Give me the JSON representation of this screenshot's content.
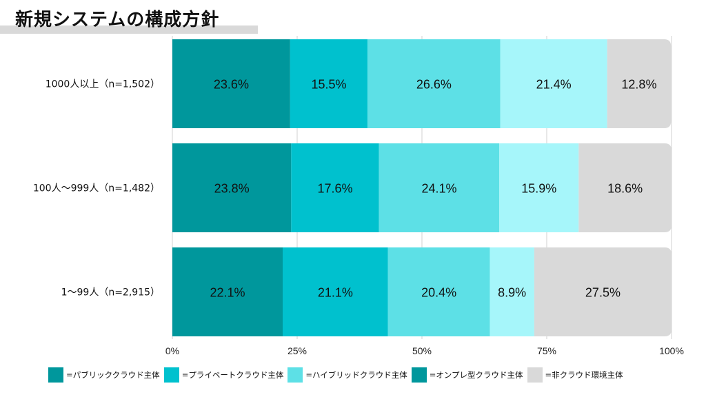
{
  "title": "新規システムの構成方針",
  "chart_data": {
    "type": "bar",
    "orientation": "horizontal",
    "stacked": true,
    "percent": true,
    "categories": [
      "1000人以上（n=1,502）",
      "100人〜999人（n=1,482）",
      "1〜99人（n=2,915）"
    ],
    "series": [
      {
        "name": "=パブリッククラウド主体",
        "color": "#00979c",
        "values": [
          23.6,
          23.8,
          22.1
        ]
      },
      {
        "name": "=プライベートクラウド主体",
        "color": "#00c1ce",
        "values": [
          15.5,
          17.6,
          21.1
        ]
      },
      {
        "name": "=ハイブリッドクラウド主体",
        "color": "#5de0e6",
        "values": [
          26.6,
          24.1,
          20.4
        ]
      },
      {
        "name": "=オンプレ型クラウド主体",
        "color": "#a6f6fa",
        "values": [
          21.4,
          15.9,
          8.9
        ]
      },
      {
        "name": "=非クラウド環境主体",
        "color": "#d9d9d9",
        "values": [
          12.8,
          18.6,
          27.5
        ]
      }
    ],
    "legend_swatch_colors": [
      "#00979c",
      "#00c1ce",
      "#5de0e6",
      "#00979c",
      "#d9d9d9"
    ],
    "xlim": [
      0,
      100
    ],
    "x_ticks": [
      "0%",
      "25%",
      "50%",
      "75%",
      "100%"
    ],
    "grid": true,
    "legend": "bottom"
  }
}
